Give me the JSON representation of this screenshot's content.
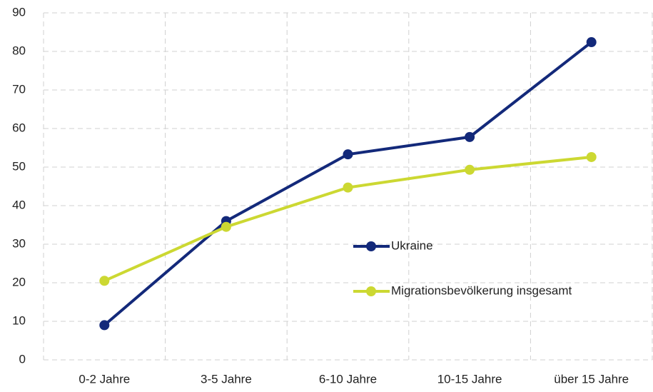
{
  "chart_data": {
    "type": "line",
    "categories": [
      "0-2 Jahre",
      "3-5 Jahre",
      "6-10 Jahre",
      "10-15 Jahre",
      "über 15 Jahre"
    ],
    "series": [
      {
        "name": "Ukraine",
        "color": "#13297a",
        "values": [
          9,
          36,
          53.3,
          57.8,
          82.4
        ]
      },
      {
        "name": "Migrationsbevölkerung insgesamt",
        "color": "#ccd832",
        "values": [
          20.5,
          34.5,
          44.7,
          49.3,
          52.6
        ]
      }
    ],
    "ylim": [
      0,
      90
    ],
    "yticks": [
      0,
      10,
      20,
      30,
      40,
      50,
      60,
      70,
      80,
      90
    ],
    "grid": true
  }
}
